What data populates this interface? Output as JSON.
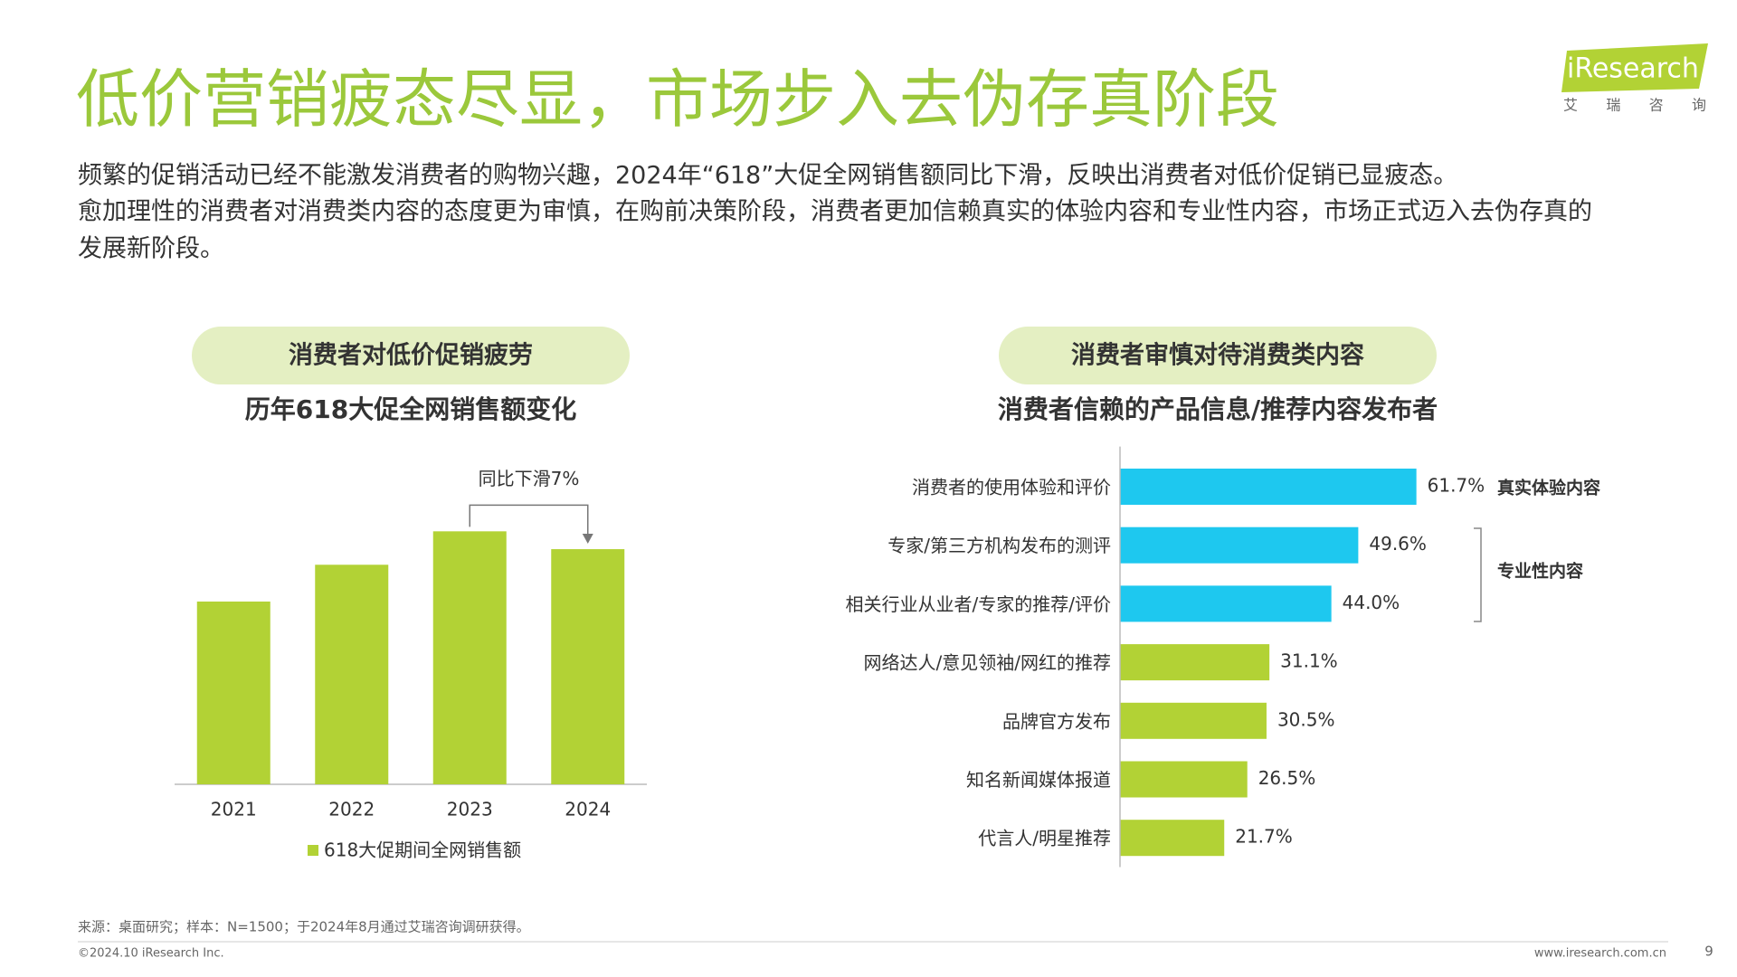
{
  "header": {
    "title": "低价营销疲态尽显，市场步入去伪存真阶段",
    "body": [
      "频繁的促销活动已经不能激发消费者的购物兴趣，2024年“618”大促全网销售额同比下滑，反映出消费者对低价促销已显疲态。",
      "愈加理性的消费者对消费类内容的态度更为审慎，在购前决策阶段，消费者更加信赖真实的体验内容和专业性内容，市场正式迈入去伪存真的",
      "发展新阶段。"
    ]
  },
  "logo": {
    "brand": "iResearch",
    "tagline": "艾 瑞 咨 询"
  },
  "chart_data": [
    {
      "type": "bar",
      "heading": "消费者对低价促销疲劳",
      "title": "历年618大促全网销售额变化",
      "categories": [
        "2021",
        "2022",
        "2023",
        "2024"
      ],
      "series": [
        {
          "name": "618大促期间全网销售额",
          "color": "#b2d235",
          "values": [
            164,
            197,
            227,
            211
          ]
        }
      ],
      "ylim": [
        0,
        250
      ],
      "annotation": "同比下滑7%"
    },
    {
      "type": "hbar",
      "heading": "消费者审慎对待消费类内容",
      "title": "消费者信赖的产品信息/推荐内容发布者",
      "categories": [
        "消费者的使用体验和评价",
        "专家/第三方机构发布的测评",
        "相关行业从业者/专家的推荐/评价",
        "网络达人/意见领袖/网红的推荐",
        "品牌官方发布",
        "知名新闻媒体报道",
        "代言人/明星推荐"
      ],
      "values": [
        61.7,
        49.6,
        44.0,
        31.1,
        30.5,
        26.5,
        21.7
      ],
      "value_labels": [
        "61.7%",
        "49.6%",
        "44.0%",
        "31.1%",
        "30.5%",
        "26.5%",
        "21.7%"
      ],
      "colors": [
        "#1ec8ef",
        "#1ec8ef",
        "#1ec8ef",
        "#b2d235",
        "#b2d235",
        "#b2d235",
        "#b2d235"
      ],
      "xlim": [
        0,
        100
      ],
      "annotations": [
        "真实体验内容",
        "专业性内容"
      ]
    }
  ],
  "footer": {
    "source": "来源：桌面研究；样本：N=1500；于2024年8月通过艾瑞咨询调研获得。",
    "copyright": "©2024.10 iResearch Inc.",
    "url": "www.iresearch.com.cn",
    "page": 9
  }
}
